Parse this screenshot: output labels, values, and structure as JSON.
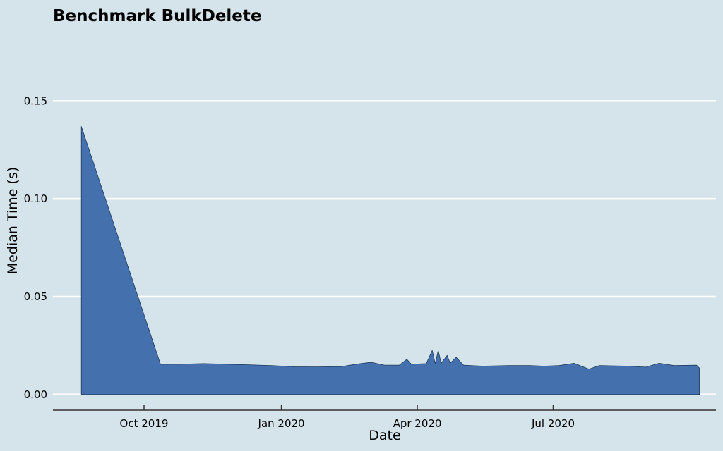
{
  "chart_data": {
    "type": "area",
    "title": "Benchmark BulkDelete",
    "xlabel": "Date",
    "ylabel": "Median Time (s)",
    "x_axis_type": "date",
    "xlim": [
      "2019-08-01",
      "2020-10-18"
    ],
    "ylim": [
      -0.008,
      0.18
    ],
    "yticks": [
      0.0,
      0.05,
      0.1,
      0.15
    ],
    "ytick_labels": [
      "0.00",
      "0.05",
      "0.10",
      "0.15"
    ],
    "xticks": [
      "2019-10-01",
      "2020-01-01",
      "2020-04-01",
      "2020-07-01"
    ],
    "xtick_labels": [
      "Oct 2019",
      "Jan 2020",
      "Apr 2020",
      "Jul 2020"
    ],
    "grid": {
      "y": true,
      "x": false,
      "color": "#ffffff"
    },
    "colors": {
      "fill": "#4470ad",
      "line": "#1f3a5c",
      "background": "#d5e4eb",
      "axis": "#333333"
    },
    "series": [
      {
        "values": [
          {
            "x": "2019-08-20",
            "y": 0.137
          },
          {
            "x": "2019-10-12",
            "y": 0.0155
          },
          {
            "x": "2019-10-25",
            "y": 0.0155
          },
          {
            "x": "2019-11-10",
            "y": 0.0158
          },
          {
            "x": "2019-11-25",
            "y": 0.0155
          },
          {
            "x": "2019-12-10",
            "y": 0.0152
          },
          {
            "x": "2019-12-25",
            "y": 0.0148
          },
          {
            "x": "2020-01-10",
            "y": 0.0142
          },
          {
            "x": "2020-01-25",
            "y": 0.0141
          },
          {
            "x": "2020-02-10",
            "y": 0.0143
          },
          {
            "x": "2020-02-20",
            "y": 0.0155
          },
          {
            "x": "2020-03-01",
            "y": 0.0165
          },
          {
            "x": "2020-03-10",
            "y": 0.015
          },
          {
            "x": "2020-03-20",
            "y": 0.015
          },
          {
            "x": "2020-03-25",
            "y": 0.018
          },
          {
            "x": "2020-03-28",
            "y": 0.0155
          },
          {
            "x": "2020-04-07",
            "y": 0.0158
          },
          {
            "x": "2020-04-11",
            "y": 0.0225
          },
          {
            "x": "2020-04-13",
            "y": 0.0158
          },
          {
            "x": "2020-04-15",
            "y": 0.0225
          },
          {
            "x": "2020-04-17",
            "y": 0.016
          },
          {
            "x": "2020-04-21",
            "y": 0.02
          },
          {
            "x": "2020-04-23",
            "y": 0.016
          },
          {
            "x": "2020-04-27",
            "y": 0.019
          },
          {
            "x": "2020-05-02",
            "y": 0.015
          },
          {
            "x": "2020-05-15",
            "y": 0.0145
          },
          {
            "x": "2020-06-01",
            "y": 0.0148
          },
          {
            "x": "2020-06-15",
            "y": 0.0148
          },
          {
            "x": "2020-06-25",
            "y": 0.0145
          },
          {
            "x": "2020-07-05",
            "y": 0.0148
          },
          {
            "x": "2020-07-15",
            "y": 0.016
          },
          {
            "x": "2020-07-25",
            "y": 0.013
          },
          {
            "x": "2020-08-01",
            "y": 0.0148
          },
          {
            "x": "2020-08-20",
            "y": 0.0145
          },
          {
            "x": "2020-09-01",
            "y": 0.014
          },
          {
            "x": "2020-09-10",
            "y": 0.016
          },
          {
            "x": "2020-09-20",
            "y": 0.0148
          },
          {
            "x": "2020-10-05",
            "y": 0.015
          },
          {
            "x": "2020-10-07",
            "y": 0.0135
          }
        ]
      }
    ]
  }
}
